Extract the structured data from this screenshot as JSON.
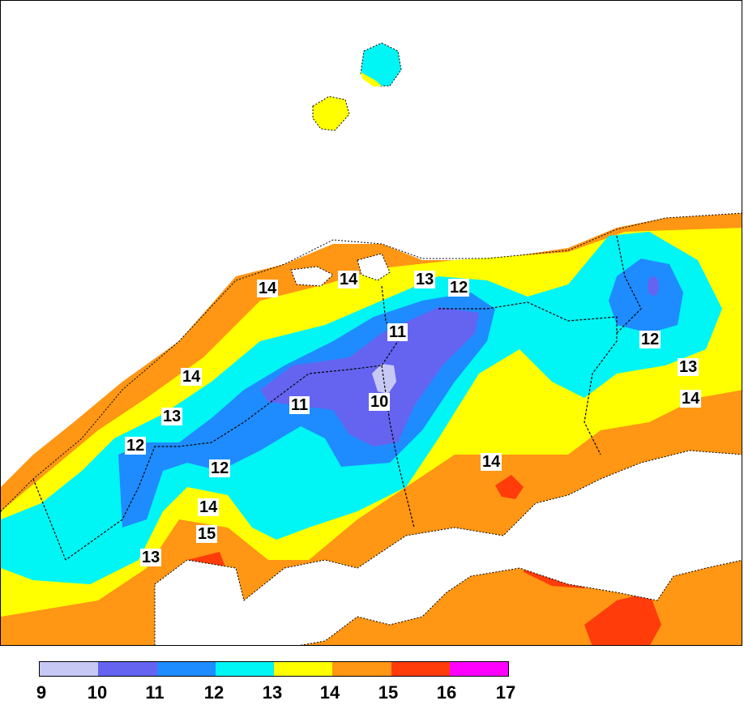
{
  "legend": {
    "ticks": [
      "9",
      "10",
      "11",
      "12",
      "13",
      "14",
      "15",
      "16",
      "17"
    ],
    "colors": [
      "#c8c8f5",
      "#6464f0",
      "#1e8cff",
      "#00f5f5",
      "#ffff00",
      "#ff9614",
      "#ff3c0a",
      "#ff00ff"
    ]
  },
  "contour_labels": [
    {
      "id": "a",
      "text": "14"
    },
    {
      "id": "b",
      "text": "14"
    },
    {
      "id": "c",
      "text": "13"
    },
    {
      "id": "d",
      "text": "12"
    },
    {
      "id": "e",
      "text": "11"
    },
    {
      "id": "f",
      "text": "12"
    },
    {
      "id": "g",
      "text": "13"
    },
    {
      "id": "h",
      "text": "14"
    },
    {
      "id": "i",
      "text": "14"
    },
    {
      "id": "j",
      "text": "10"
    },
    {
      "id": "k",
      "text": "11"
    },
    {
      "id": "l",
      "text": "13"
    },
    {
      "id": "m",
      "text": "12"
    },
    {
      "id": "n",
      "text": "12"
    },
    {
      "id": "o",
      "text": "14"
    },
    {
      "id": "p",
      "text": "14"
    },
    {
      "id": "q",
      "text": "15"
    },
    {
      "id": "r",
      "text": "13"
    }
  ],
  "map_colors": {
    "sea": "#ffffff",
    "border": "#000000"
  }
}
